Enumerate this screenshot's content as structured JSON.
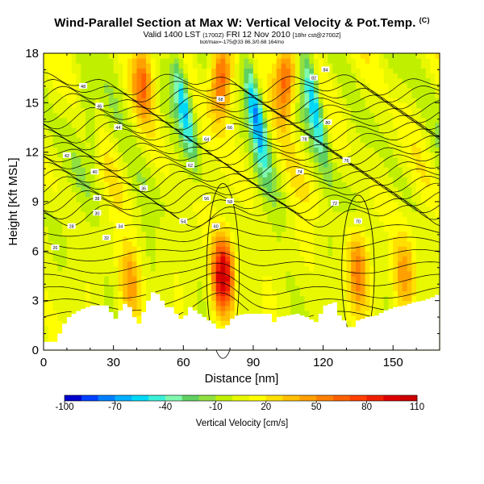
{
  "header": {
    "title": "Wind-Parallel Section at Max W: Vertical Velocity & Pot.Temp.",
    "title_unit": "(C)",
    "valid_main": "Valid 1400 LST",
    "valid_utc": "(1700Z)",
    "valid_date": "FRI 12 Nov 2010",
    "valid_suffix": "[18hr cst@2700Z]",
    "info_line": "bot/max=-175@33 86.3/0.68 164/no"
  },
  "chart_data": {
    "type": "heatmap",
    "title": "Wind-Parallel Section at Max W: Vertical Velocity & Pot.Temp.",
    "xlabel": "Distance [nm]",
    "ylabel": "Height [Kft MSL]",
    "xlim": [
      0,
      170
    ],
    "ylim": [
      0,
      18
    ],
    "xticks": [
      "0",
      "30",
      "60",
      "90",
      "120",
      "150"
    ],
    "yticks": [
      "0",
      "3",
      "6",
      "9",
      "12",
      "15",
      "18"
    ],
    "colorbar": {
      "label": "Vertical Velocity [cm/s]",
      "tick_labels": [
        "-100",
        "-70",
        "-40",
        "-10",
        "20",
        "50",
        "80",
        "110"
      ],
      "bins": [
        -100,
        -90,
        -80,
        -70,
        -60,
        -50,
        -40,
        -30,
        -20,
        -10,
        0,
        10,
        20,
        30,
        40,
        50,
        60,
        70,
        80,
        90,
        100,
        110
      ],
      "colors": [
        "#0000cd",
        "#0040ff",
        "#0080ff",
        "#00b0ff",
        "#00d8f8",
        "#3cf0d8",
        "#80f8b0",
        "#60d060",
        "#90e040",
        "#c0f000",
        "#e8f800",
        "#ffff00",
        "#ffe000",
        "#ffc000",
        "#ffa000",
        "#ff8000",
        "#ff6000",
        "#ff4000",
        "#ee2000",
        "#dd0000",
        "#cc0000"
      ]
    },
    "terrain": [
      [
        0,
        0.5
      ],
      [
        4,
        0.5
      ],
      [
        6,
        1.0
      ],
      [
        8,
        1.6
      ],
      [
        10,
        2.0
      ],
      [
        13,
        2.3
      ],
      [
        16,
        2.5
      ],
      [
        20,
        2.7
      ],
      [
        24,
        2.7
      ],
      [
        26,
        2.7
      ],
      [
        28,
        2.3
      ],
      [
        30,
        1.9
      ],
      [
        32,
        2.4
      ],
      [
        34,
        2.8
      ],
      [
        36,
        2.6
      ],
      [
        38,
        2.0
      ],
      [
        40,
        1.6
      ],
      [
        42,
        2.3
      ],
      [
        44,
        3.0
      ],
      [
        46,
        3.5
      ],
      [
        48,
        3.4
      ],
      [
        50,
        3.0
      ],
      [
        52,
        2.6
      ],
      [
        54,
        2.6
      ],
      [
        56,
        2.2
      ],
      [
        58,
        1.9
      ],
      [
        60,
        2.1
      ],
      [
        62,
        2.6
      ],
      [
        65,
        2.3
      ],
      [
        68,
        2.0
      ],
      [
        70,
        1.8
      ],
      [
        72,
        1.6
      ],
      [
        74,
        1.3
      ],
      [
        76,
        1.3
      ],
      [
        78,
        1.5
      ],
      [
        80,
        1.9
      ],
      [
        82,
        2.1
      ],
      [
        86,
        2.2
      ],
      [
        90,
        2.2
      ],
      [
        94,
        2.2
      ],
      [
        97,
        2.2
      ],
      [
        98,
        1.7
      ],
      [
        100,
        2.0
      ],
      [
        104,
        2.1
      ],
      [
        108,
        2.2
      ],
      [
        112,
        2.0
      ],
      [
        116,
        1.7
      ],
      [
        118,
        2.2
      ],
      [
        120,
        2.7
      ],
      [
        124,
        2.9
      ],
      [
        126,
        2.1
      ],
      [
        128,
        1.8
      ],
      [
        130,
        1.4
      ],
      [
        132,
        1.4
      ],
      [
        134,
        1.8
      ],
      [
        138,
        2.0
      ],
      [
        142,
        2.1
      ],
      [
        146,
        2.4
      ],
      [
        150,
        2.6
      ],
      [
        154,
        2.7
      ],
      [
        158,
        2.9
      ],
      [
        162,
        3.0
      ],
      [
        166,
        3.2
      ],
      [
        170,
        3.5
      ]
    ],
    "updrafts": [
      {
        "x": 77,
        "z": 4.5,
        "peak": 110
      },
      {
        "x": 76,
        "z": 16.5,
        "peak": 80
      },
      {
        "x": 104,
        "z": 16.5,
        "peak": 80
      },
      {
        "x": 43,
        "z": 16.5,
        "peak": 60
      },
      {
        "x": 135,
        "z": 4.8,
        "peak": 60
      },
      {
        "x": 155,
        "z": 4.5,
        "peak": 50
      },
      {
        "x": 37,
        "z": 4.0,
        "peak": 50
      }
    ],
    "downdrafts": [
      {
        "x": 91,
        "z": 14.5,
        "peak": -70
      },
      {
        "x": 60,
        "z": 15.0,
        "peak": -60
      },
      {
        "x": 116,
        "z": 15.0,
        "peak": -60
      },
      {
        "x": 20,
        "z": 14.0,
        "peak": -20
      }
    ],
    "isentrope_labels": [
      {
        "x": 5,
        "z": 6.2,
        "text": "26"
      },
      {
        "x": 12,
        "z": 7.5,
        "text": "28"
      },
      {
        "x": 23,
        "z": 8.3,
        "text": "30"
      },
      {
        "x": 27,
        "z": 6.8,
        "text": "32"
      },
      {
        "x": 33,
        "z": 7.5,
        "text": "34"
      },
      {
        "x": 43,
        "z": 9.8,
        "text": "36"
      },
      {
        "x": 23,
        "z": 9.2,
        "text": "38"
      },
      {
        "x": 22,
        "z": 10.8,
        "text": "40"
      },
      {
        "x": 10,
        "z": 11.8,
        "text": "42"
      },
      {
        "x": 32,
        "z": 13.5,
        "text": "44"
      },
      {
        "x": 24,
        "z": 14.8,
        "text": "46"
      },
      {
        "x": 17,
        "z": 16.0,
        "text": "48"
      },
      {
        "x": 60,
        "z": 7.8,
        "text": "54"
      },
      {
        "x": 70,
        "z": 9.2,
        "text": "56"
      },
      {
        "x": 80,
        "z": 9.0,
        "text": "58"
      },
      {
        "x": 74,
        "z": 7.5,
        "text": "60"
      },
      {
        "x": 63,
        "z": 11.2,
        "text": "62"
      },
      {
        "x": 70,
        "z": 12.8,
        "text": "64"
      },
      {
        "x": 80,
        "z": 13.5,
        "text": "66"
      },
      {
        "x": 76,
        "z": 15.2,
        "text": "68"
      },
      {
        "x": 135,
        "z": 7.8,
        "text": "70"
      },
      {
        "x": 125,
        "z": 8.9,
        "text": "72"
      },
      {
        "x": 110,
        "z": 10.8,
        "text": "74"
      },
      {
        "x": 130,
        "z": 11.5,
        "text": "76"
      },
      {
        "x": 112,
        "z": 12.8,
        "text": "78"
      },
      {
        "x": 122,
        "z": 13.8,
        "text": "80"
      },
      {
        "x": 116,
        "z": 16.5,
        "text": "82"
      },
      {
        "x": 121,
        "z": 17.0,
        "text": "84"
      }
    ]
  }
}
